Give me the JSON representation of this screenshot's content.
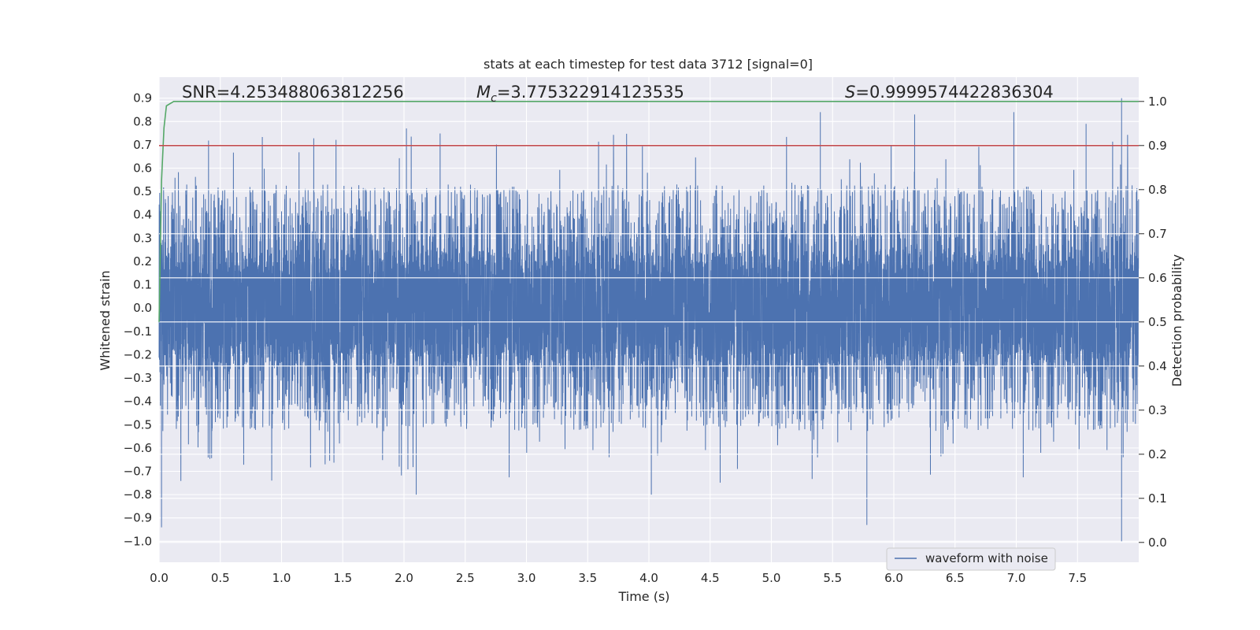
{
  "chart_data": {
    "type": "line",
    "title": "stats at each timestep for test data 3712 [signal=0]",
    "xlabel": "Time (s)",
    "ylabel_left": "Whitened strain",
    "ylabel_right": "Detection probability",
    "xlim": [
      0.0,
      8.0
    ],
    "ylim_left": [
      -1.09,
      0.99
    ],
    "ylim_right": [
      -0.045,
      1.055
    ],
    "x_ticks": [
      "0.0",
      "0.5",
      "1.0",
      "1.5",
      "2.0",
      "2.5",
      "3.0",
      "3.5",
      "4.0",
      "4.5",
      "5.0",
      "5.5",
      "6.0",
      "6.5",
      "7.0",
      "7.5"
    ],
    "y_ticks_left": [
      "0.9",
      "0.8",
      "0.7",
      "0.6",
      "0.5",
      "0.4",
      "0.3",
      "0.2",
      "0.1",
      "0.0",
      "−0.1",
      "−0.2",
      "−0.3",
      "−0.4",
      "−0.5",
      "−0.6",
      "−0.7",
      "−0.8",
      "−0.9",
      "−1.0"
    ],
    "y_ticks_right": [
      "1.0",
      "0.9",
      "0.8",
      "0.7",
      "0.6",
      "0.5",
      "0.4",
      "0.3",
      "0.2",
      "0.1",
      "0.0"
    ],
    "grid": true,
    "legend_position": "bottom-right",
    "stats": {
      "snr": "SNR=4.253488063812256",
      "mc_symbol": "M",
      "mc_sub": "c",
      "mc_value": "=3.775322914123535",
      "s_symbol": "S",
      "s_value": "=0.9999574422836304"
    },
    "series": [
      {
        "name": "waveform with noise",
        "axis": "left",
        "color": "#4c72b0",
        "approx_envelope": {
          "typical_max": 0.45,
          "typical_min": -0.42,
          "peak_max": 0.9,
          "peak_min": -1.0
        },
        "notable_peaks": [
          {
            "x": 2.02,
            "y": 0.77
          },
          {
            "x": 5.4,
            "y": 0.84
          },
          {
            "x": 6.17,
            "y": 0.83
          },
          {
            "x": 6.98,
            "y": 0.84
          },
          {
            "x": 7.86,
            "y": 0.9
          },
          {
            "x": 7.57,
            "y": 0.79
          }
        ],
        "notable_troughs": [
          {
            "x": 0.02,
            "y": -0.94
          },
          {
            "x": 5.78,
            "y": -0.93
          },
          {
            "x": 7.86,
            "y": -1.0
          },
          {
            "x": 4.02,
            "y": -0.8
          },
          {
            "x": 2.1,
            "y": -0.8
          }
        ]
      },
      {
        "axis": "right",
        "color": "#55a868",
        "points": [
          {
            "x": 0.0,
            "y": 0.5
          },
          {
            "x": 0.02,
            "y": 0.82
          },
          {
            "x": 0.04,
            "y": 0.94
          },
          {
            "x": 0.06,
            "y": 0.99
          },
          {
            "x": 0.12,
            "y": 1.0
          },
          {
            "x": 8.0,
            "y": 1.0
          }
        ]
      },
      {
        "axis": "right",
        "color": "#c44e52",
        "constant": 0.9
      }
    ]
  }
}
